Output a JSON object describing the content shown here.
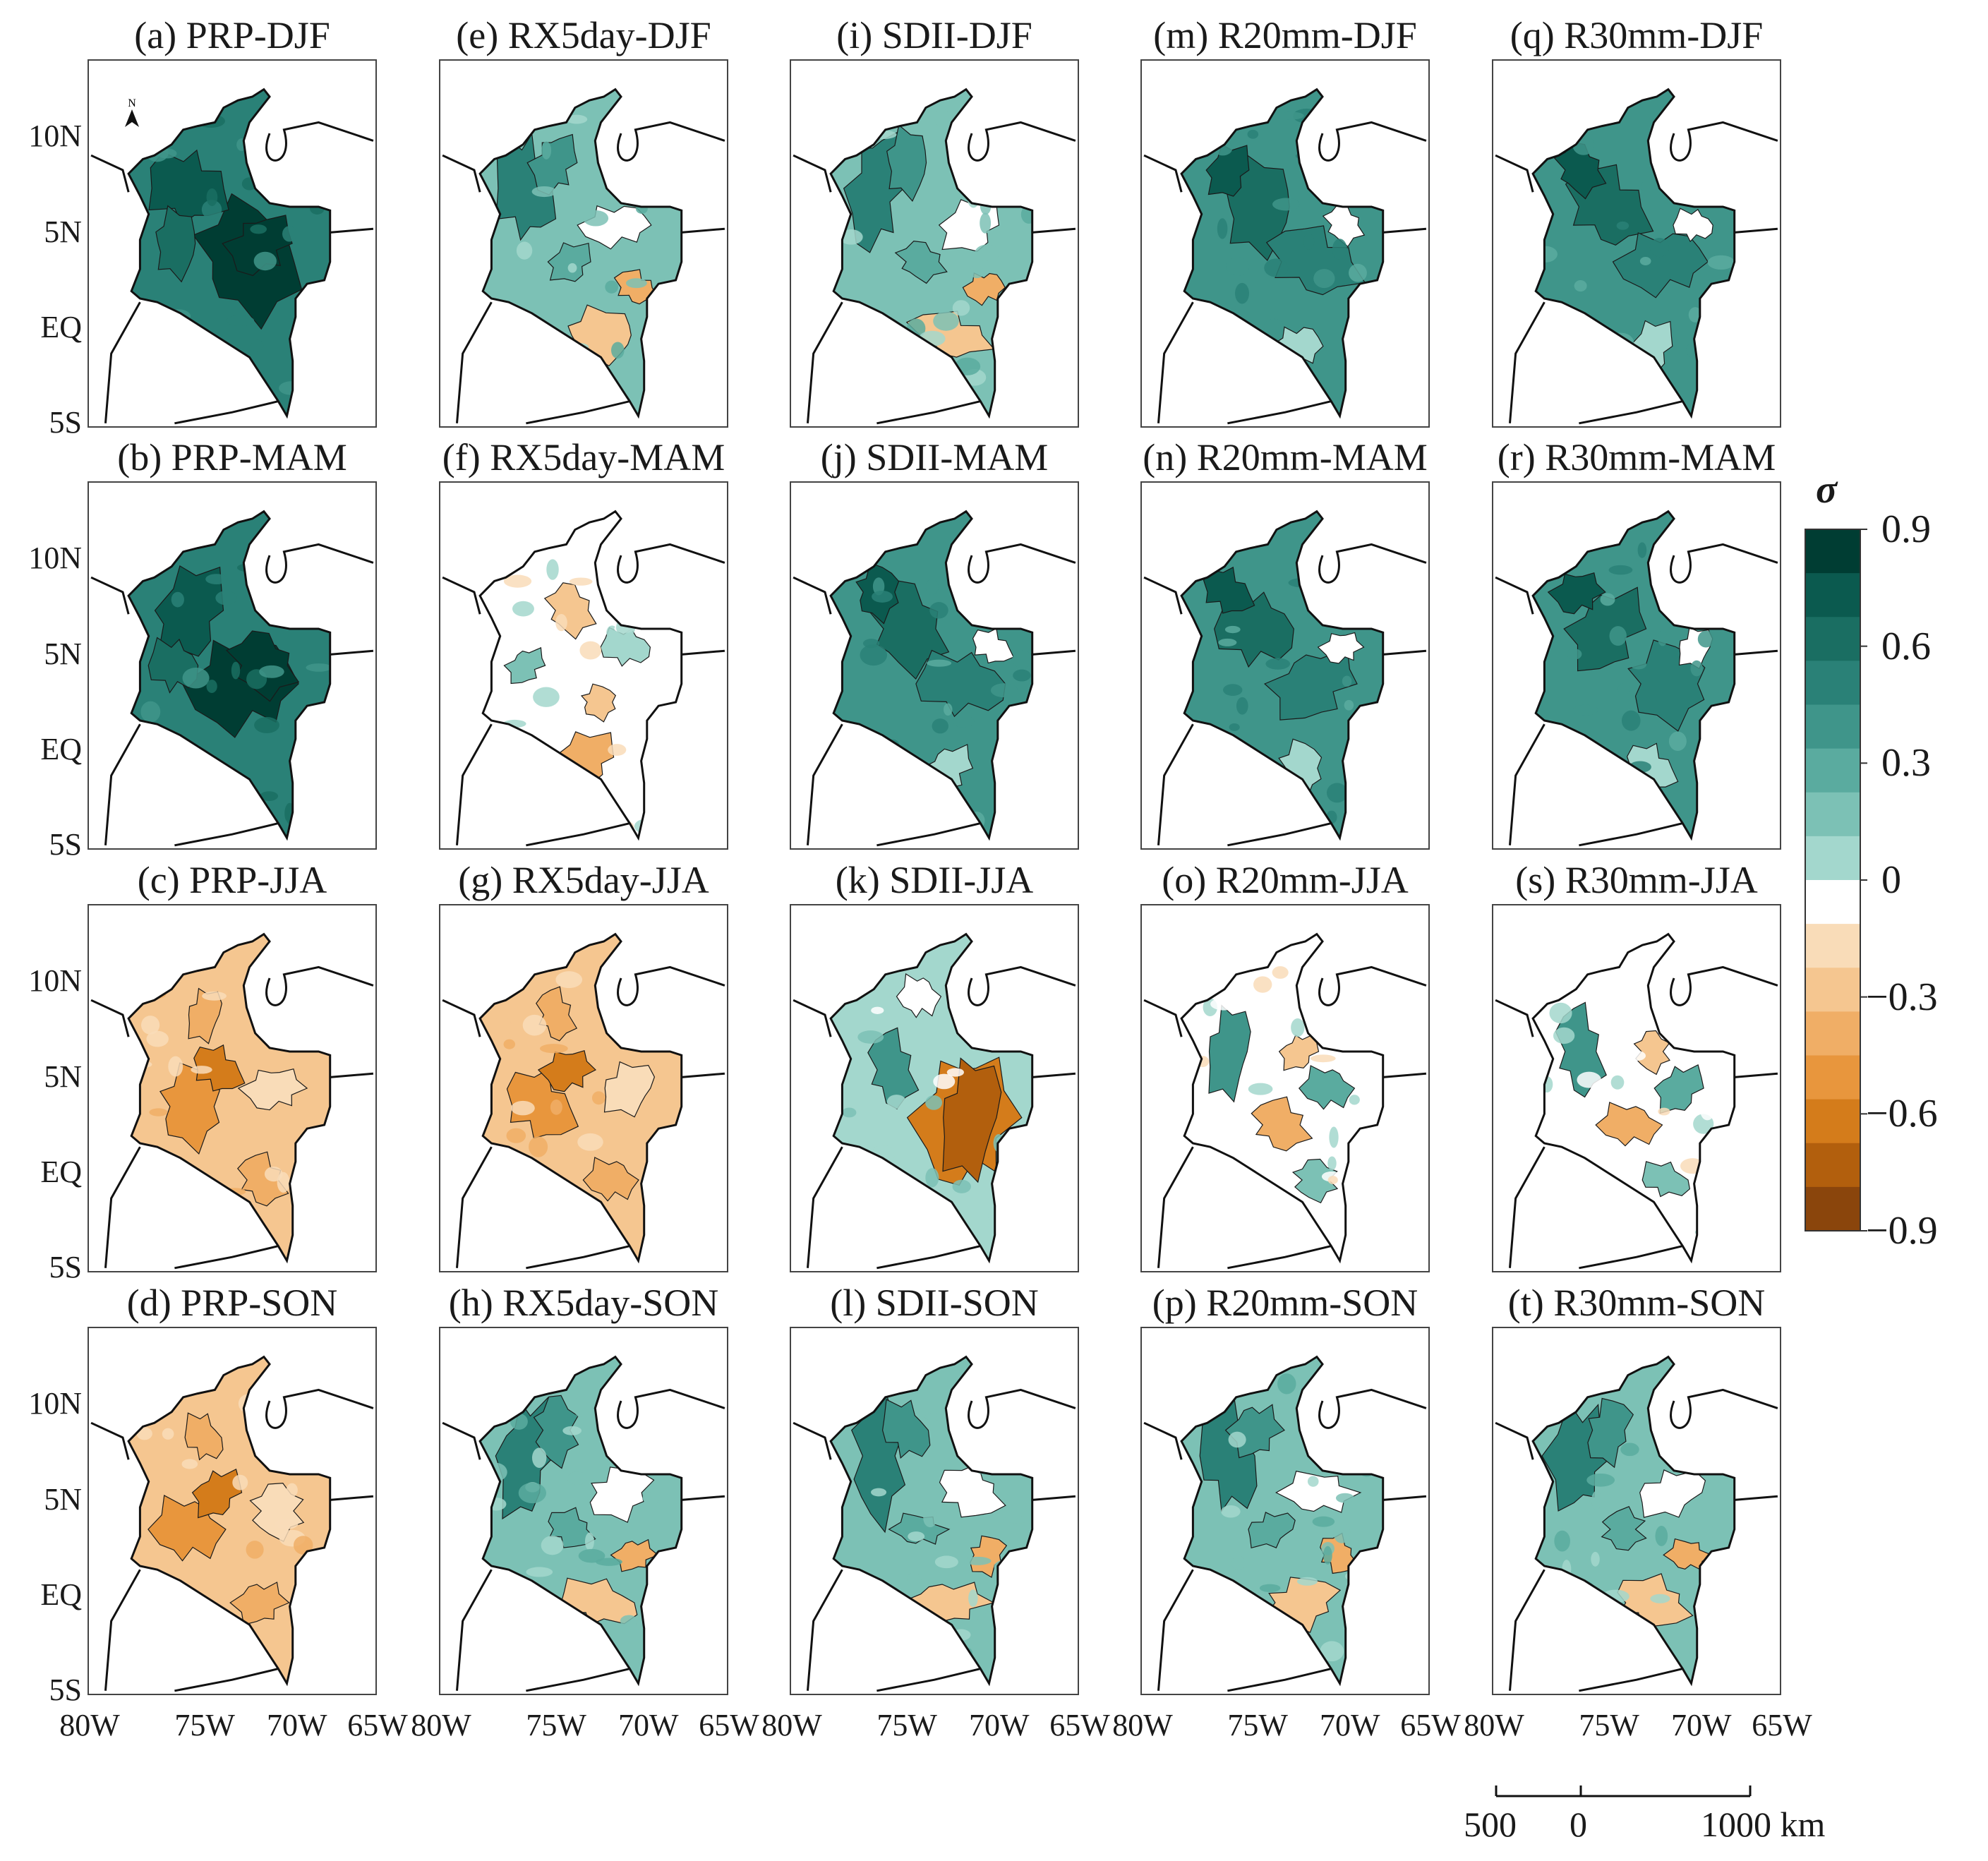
{
  "figure": {
    "panels": [
      {
        "row": 0,
        "col": 0,
        "title": "(a) PRP-DJF",
        "pattern": "pos-strong"
      },
      {
        "row": 0,
        "col": 1,
        "title": "(e) RX5day-DJF",
        "pattern": "pos-west-neg-south"
      },
      {
        "row": 0,
        "col": 2,
        "title": "(i) SDII-DJF",
        "pattern": "pos-west-neg-south"
      },
      {
        "row": 0,
        "col": 3,
        "title": "(m) R20mm-DJF",
        "pattern": "pos-medium"
      },
      {
        "row": 0,
        "col": 4,
        "title": "(q) R30mm-DJF",
        "pattern": "pos-medium"
      },
      {
        "row": 1,
        "col": 0,
        "title": "(b) PRP-MAM",
        "pattern": "pos-strong"
      },
      {
        "row": 1,
        "col": 1,
        "title": "(f) RX5day-MAM",
        "pattern": "mixed-neg"
      },
      {
        "row": 1,
        "col": 2,
        "title": "(j) SDII-MAM",
        "pattern": "pos-medium"
      },
      {
        "row": 1,
        "col": 3,
        "title": "(n) R20mm-MAM",
        "pattern": "pos-medium"
      },
      {
        "row": 1,
        "col": 4,
        "title": "(r) R30mm-MAM",
        "pattern": "pos-medium"
      },
      {
        "row": 2,
        "col": 0,
        "title": "(c) PRP-JJA",
        "pattern": "neg-medium"
      },
      {
        "row": 2,
        "col": 1,
        "title": "(g) RX5day-JJA",
        "pattern": "neg-medium"
      },
      {
        "row": 2,
        "col": 2,
        "title": "(k) SDII-JJA",
        "pattern": "neg-strong-east"
      },
      {
        "row": 2,
        "col": 3,
        "title": "(o) R20mm-JJA",
        "pattern": "mixed"
      },
      {
        "row": 2,
        "col": 4,
        "title": "(s) R30mm-JJA",
        "pattern": "mixed"
      },
      {
        "row": 3,
        "col": 0,
        "title": "(d) PRP-SON",
        "pattern": "neg-medium"
      },
      {
        "row": 3,
        "col": 1,
        "title": "(h) RX5day-SON",
        "pattern": "pos-west-neg-south"
      },
      {
        "row": 3,
        "col": 2,
        "title": "(l) SDII-SON",
        "pattern": "pos-west-neg-south"
      },
      {
        "row": 3,
        "col": 3,
        "title": "(p) R20mm-SON",
        "pattern": "pos-west-neg-south"
      },
      {
        "row": 3,
        "col": 4,
        "title": "(t) R30mm-SON",
        "pattern": "pos-west-neg-south"
      }
    ],
    "lat_labels": [
      "10N",
      "5N",
      "EQ",
      "5S"
    ],
    "lon_labels": [
      "80W",
      "75W",
      "70W",
      "65W"
    ],
    "north_arrow": "N",
    "colorbar": {
      "title": "σ",
      "ticks": [
        "0.9",
        "0.6",
        "0.3",
        "0",
        "−0.3",
        "−0.6",
        "−0.9"
      ],
      "colors": [
        "#003d33",
        "#0b5a4f",
        "#1a6e62",
        "#2a8177",
        "#3f958a",
        "#5aab9f",
        "#7cc1b5",
        "#a3d7cd",
        "#ffffff",
        "#f9dcb8",
        "#f5c690",
        "#f0ae66",
        "#e8963d",
        "#d47c1b",
        "#b25f0d",
        "#8a450c"
      ]
    },
    "scalebar": {
      "labels": [
        "500",
        "0",
        "1000 km"
      ]
    }
  }
}
